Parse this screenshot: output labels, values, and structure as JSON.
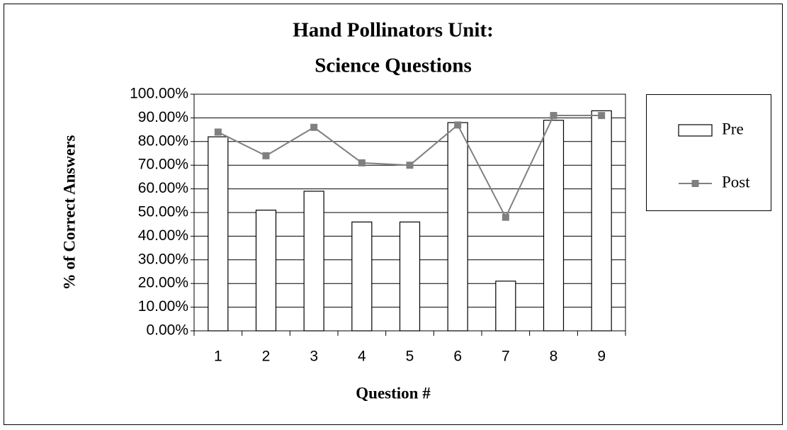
{
  "chart_data": {
    "type": "combo",
    "title": [
      "Hand Pollinators Unit:",
      "Science Questions"
    ],
    "x_label": "Question #",
    "y_label": "% of Correct Answers",
    "categories": [
      "1",
      "2",
      "3",
      "4",
      "5",
      "6",
      "7",
      "8",
      "9"
    ],
    "series": [
      {
        "name": "Pre",
        "type": "bar",
        "color": "#ffffff",
        "values": [
          82,
          51,
          59,
          46,
          46,
          88,
          21,
          89,
          93
        ]
      },
      {
        "name": "Post",
        "type": "line",
        "color": "#808080",
        "values": [
          84,
          74,
          86,
          71,
          70,
          87,
          48,
          91,
          91
        ]
      }
    ],
    "ylim": [
      0,
      100
    ],
    "yticks": [
      {
        "value": 0,
        "label": "0.00%"
      },
      {
        "value": 10,
        "label": "10.00%"
      },
      {
        "value": 20,
        "label": "20.00%"
      },
      {
        "value": 30,
        "label": "30.00%"
      },
      {
        "value": 40,
        "label": "40.00%"
      },
      {
        "value": 50,
        "label": "50.00%"
      },
      {
        "value": 60,
        "label": "60.00%"
      },
      {
        "value": 70,
        "label": "70.00%"
      },
      {
        "value": 80,
        "label": "80.00%"
      },
      {
        "value": 90,
        "label": "90.00%"
      },
      {
        "value": 100,
        "label": "100.00%"
      }
    ],
    "grid": true,
    "legend": "right"
  }
}
